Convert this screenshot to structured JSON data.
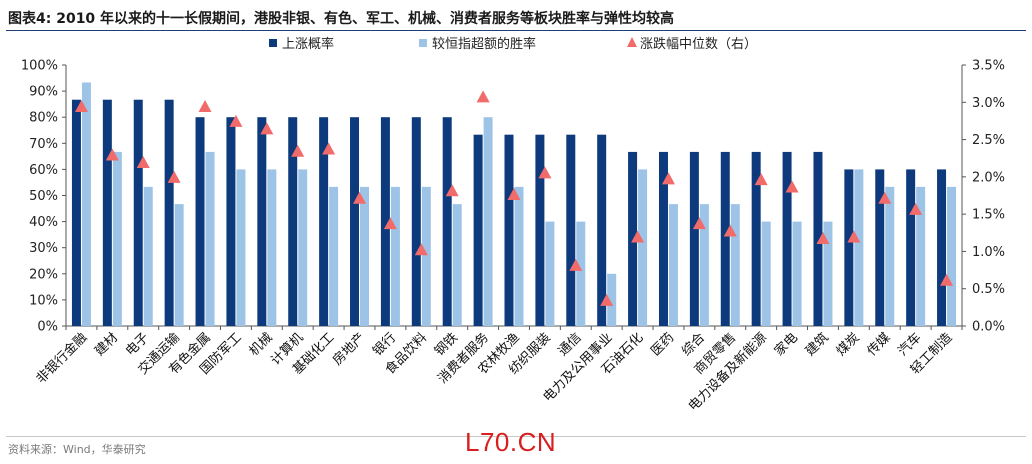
{
  "header": {
    "title": "图表4:  2010 年以来的十一长假期间，港股非银、有色、军工、机械、消费者服务等板块胜率与弹性均较高"
  },
  "footer": {
    "source": "资料来源：Wind，华泰研究",
    "watermark": "L70.CN"
  },
  "colors": {
    "series1": "#0d3a7c",
    "series2": "#9dc3e6",
    "series3": "#f26b6b"
  },
  "chart_data": {
    "type": "bar",
    "categories": [
      "非银行金融",
      "建材",
      "电子",
      "交通运输",
      "有色金属",
      "国防军工",
      "机械",
      "计算机",
      "基础化工",
      "房地产",
      "银行",
      "食品饮料",
      "钢铁",
      "消费者服务",
      "农林牧渔",
      "纺织服装",
      "通信",
      "电力及公用事业",
      "石油石化",
      "医药",
      "综合",
      "商贸零售",
      "电力设备及新能源",
      "家电",
      "建筑",
      "煤炭",
      "传媒",
      "汽车",
      "轻工制造"
    ],
    "series": [
      {
        "name": "上涨概率",
        "axis": "left",
        "kind": "bar",
        "values": [
          86.7,
          86.7,
          86.7,
          86.7,
          80,
          80,
          80,
          80,
          80,
          80,
          80,
          80,
          80,
          73.3,
          73.3,
          73.3,
          73.3,
          73.3,
          66.7,
          66.7,
          66.7,
          66.7,
          66.7,
          66.7,
          66.7,
          60,
          60,
          60,
          60
        ]
      },
      {
        "name": "较恒指超额的胜率",
        "axis": "left",
        "kind": "bar",
        "values": [
          93.3,
          66.7,
          53.3,
          46.7,
          66.7,
          60,
          60,
          60,
          53.3,
          53.3,
          53.3,
          53.3,
          46.7,
          80,
          53.3,
          40,
          40,
          20,
          60,
          46.7,
          46.7,
          46.7,
          40,
          40,
          40,
          60,
          53.3,
          53.3,
          53.3
        ]
      },
      {
        "name": "涨跌幅中位数（右）",
        "axis": "right",
        "kind": "marker",
        "values": [
          2.95,
          2.3,
          2.2,
          2.0,
          2.95,
          2.75,
          2.65,
          2.35,
          2.38,
          1.72,
          1.38,
          1.03,
          1.82,
          3.08,
          1.77,
          2.06,
          0.82,
          0.35,
          1.2,
          1.98,
          1.38,
          1.28,
          1.97,
          1.87,
          1.18,
          1.2,
          1.72,
          1.57,
          0.62
        ]
      }
    ],
    "left_axis": {
      "min": 0,
      "max": 100,
      "step": 10,
      "format": "percent0"
    },
    "right_axis": {
      "min": 0,
      "max": 3.5,
      "step": 0.5,
      "format": "percent1"
    },
    "legend_position": "top",
    "grid": false
  }
}
